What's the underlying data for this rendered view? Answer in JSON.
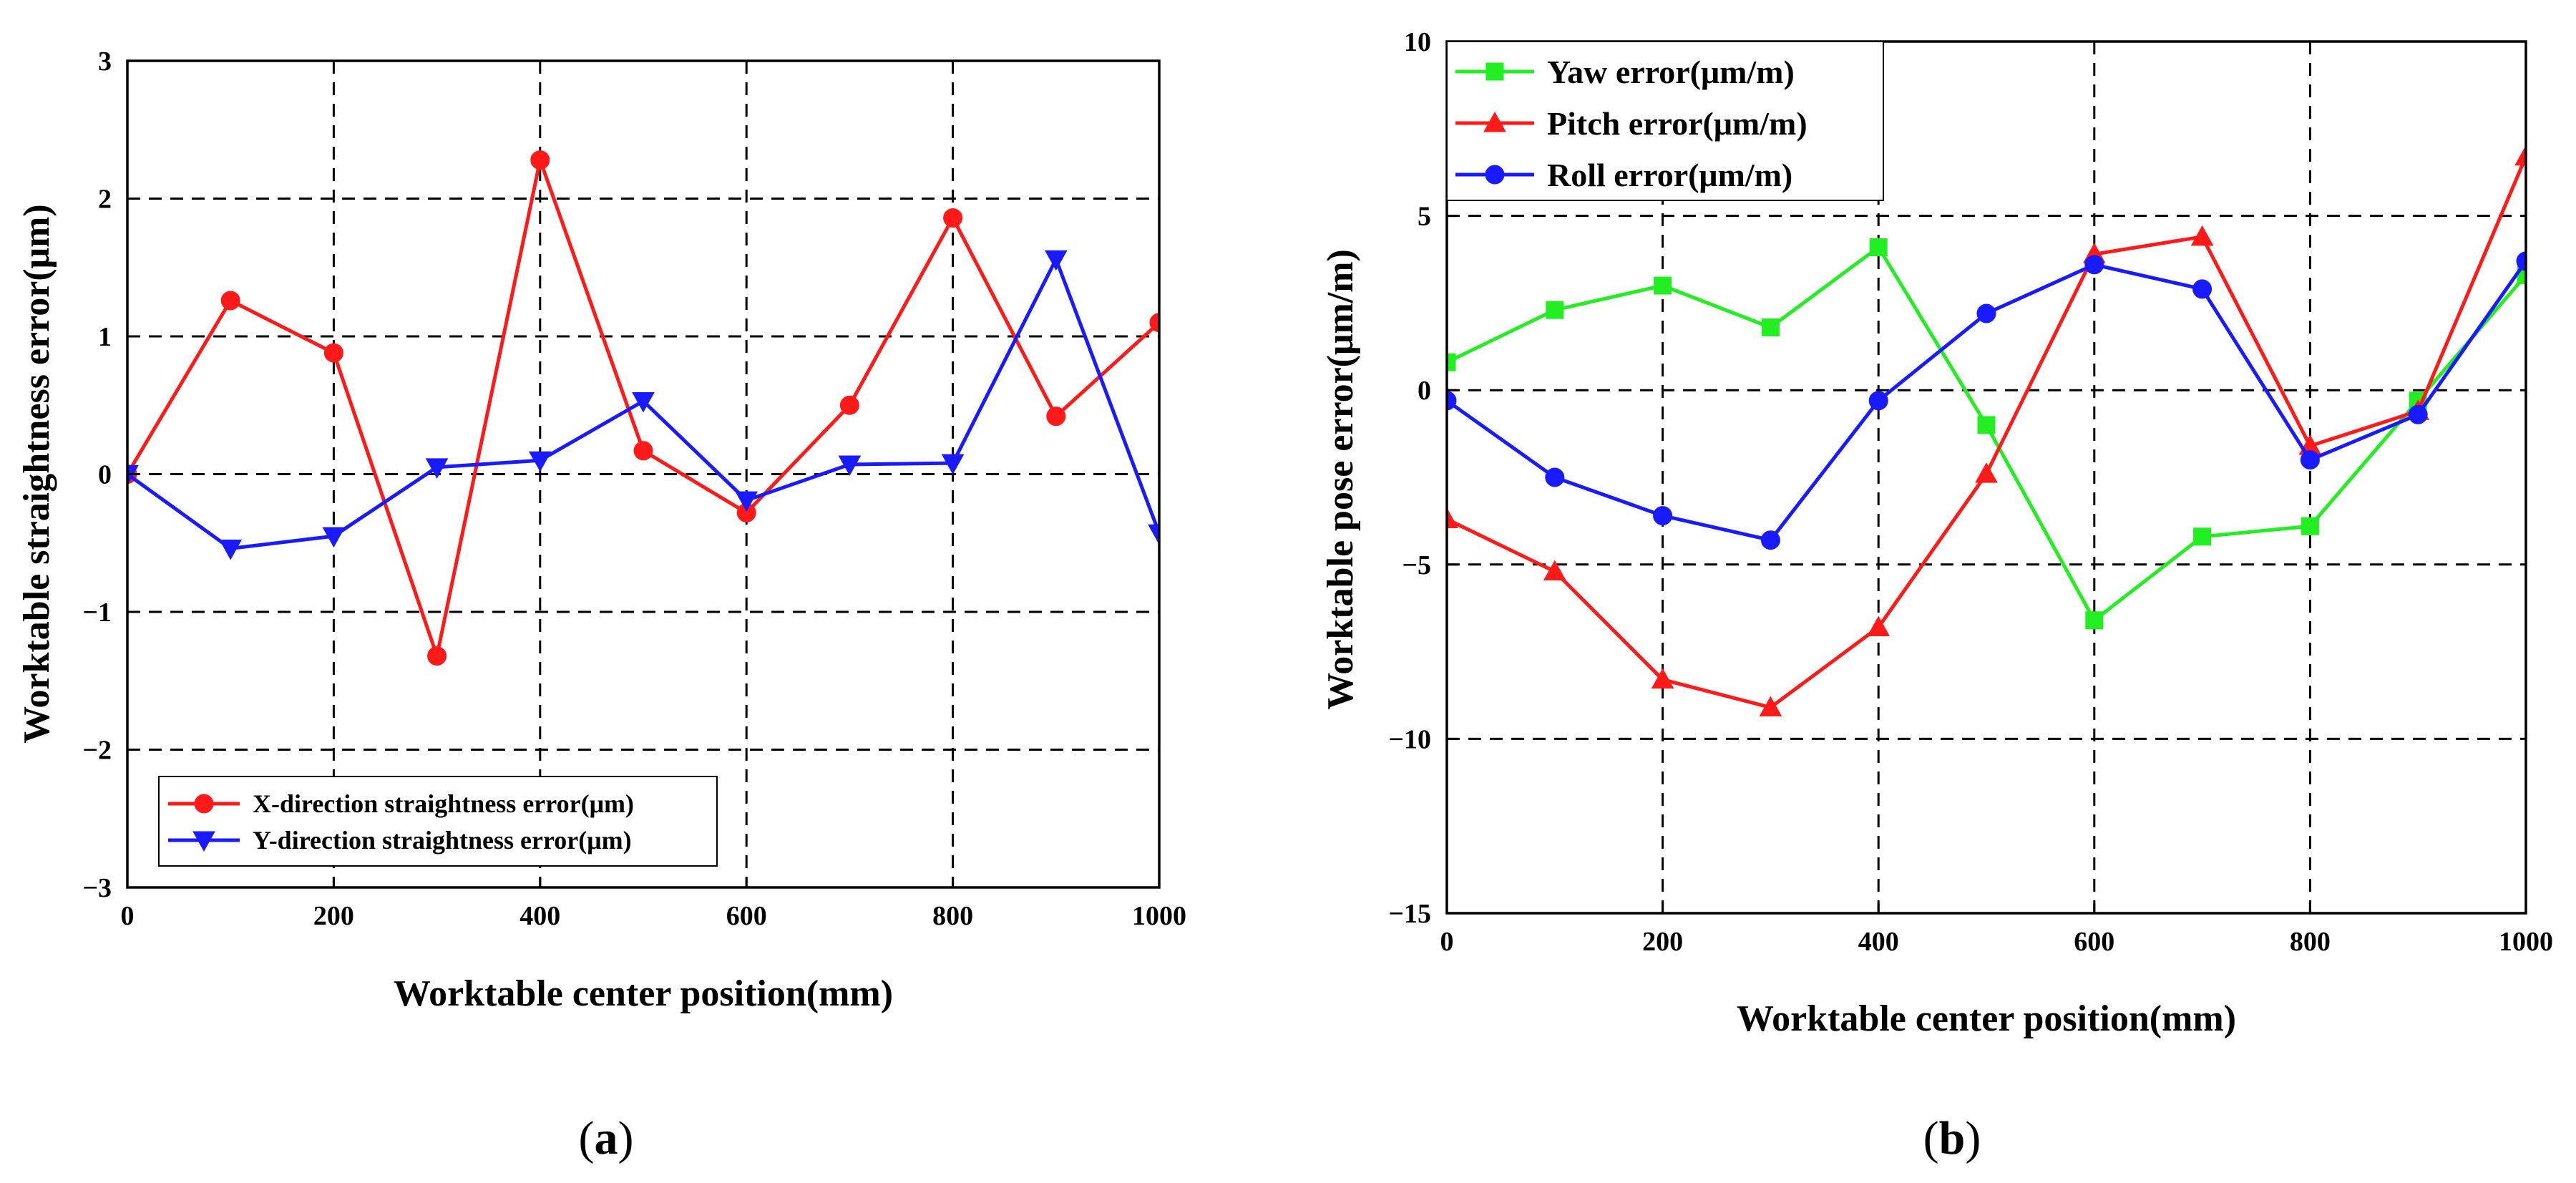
{
  "figure": {
    "panel_a": "(a)",
    "panel_b": "(b)"
  },
  "colors": {
    "red": "#ff1a1a",
    "blue": "#1a1aff",
    "green": "#22ee22"
  },
  "chart_data": [
    {
      "id": "a",
      "type": "line",
      "title": "",
      "xlabel": "Worktable center position(mm)",
      "ylabel": "Worktable straightness error(μm)",
      "x": [
        0,
        100,
        200,
        300,
        400,
        500,
        600,
        700,
        800,
        900,
        1000
      ],
      "xlim": [
        0,
        1000
      ],
      "ylim": [
        -3,
        3
      ],
      "xticks": [
        0,
        200,
        400,
        600,
        800,
        1000
      ],
      "xtick_labels": [
        "0",
        "200",
        "400",
        "600",
        "800",
        "1000"
      ],
      "yticks": [
        -3,
        -2,
        -1,
        0,
        1,
        2,
        3
      ],
      "ytick_labels": [
        "−3",
        "−2",
        "−1",
        "0",
        "1",
        "2",
        "3"
      ],
      "grid": true,
      "legend_position": "bottom-left",
      "series": [
        {
          "name": "X-direction straightness error(μm)",
          "color": "#ff1a1a",
          "marker": "circle",
          "values": [
            0,
            1.26,
            0.88,
            -1.32,
            2.28,
            0.17,
            -0.28,
            0.5,
            1.86,
            0.42,
            1.1
          ]
        },
        {
          "name": "Y-direction straightness error(μm)",
          "color": "#1a1aff",
          "marker": "triangle-down",
          "values": [
            0,
            -0.54,
            -0.45,
            0.05,
            0.1,
            0.53,
            -0.19,
            0.07,
            0.08,
            1.56,
            -0.43
          ]
        }
      ]
    },
    {
      "id": "b",
      "type": "line",
      "title": "",
      "xlabel": "Worktable center position(mm)",
      "ylabel": "Worktable pose error(μm/m)",
      "x": [
        0,
        100,
        200,
        300,
        400,
        500,
        600,
        700,
        800,
        900,
        1000
      ],
      "xlim": [
        0,
        1000
      ],
      "ylim": [
        -15,
        10
      ],
      "xticks": [
        0,
        200,
        400,
        600,
        800,
        1000
      ],
      "xtick_labels": [
        "0",
        "200",
        "400",
        "600",
        "800",
        "1000"
      ],
      "yticks": [
        -15,
        -10,
        -5,
        0,
        5,
        10
      ],
      "ytick_labels": [
        "−15",
        "−10",
        "−5",
        "0",
        "5",
        "10"
      ],
      "grid": true,
      "legend_position": "top-left",
      "series": [
        {
          "name": "Yaw error(μm/m)",
          "color": "#22ee22",
          "marker": "square",
          "values": [
            0.8,
            2.3,
            3.0,
            1.8,
            4.1,
            -1.0,
            -6.6,
            -4.2,
            -3.9,
            -0.3,
            3.3
          ]
        },
        {
          "name": "Pitch error(μm/m)",
          "color": "#ff1a1a",
          "marker": "triangle-up",
          "values": [
            -3.7,
            -5.2,
            -8.3,
            -9.1,
            -6.8,
            -2.4,
            3.9,
            4.4,
            -1.6,
            -0.6,
            6.7
          ]
        },
        {
          "name": "Roll error(μm/m)",
          "color": "#1a1aff",
          "marker": "circle",
          "values": [
            -0.3,
            -2.5,
            -3.6,
            -4.3,
            -0.3,
            2.2,
            3.6,
            2.9,
            -2.0,
            -0.7,
            3.7
          ]
        }
      ]
    }
  ]
}
